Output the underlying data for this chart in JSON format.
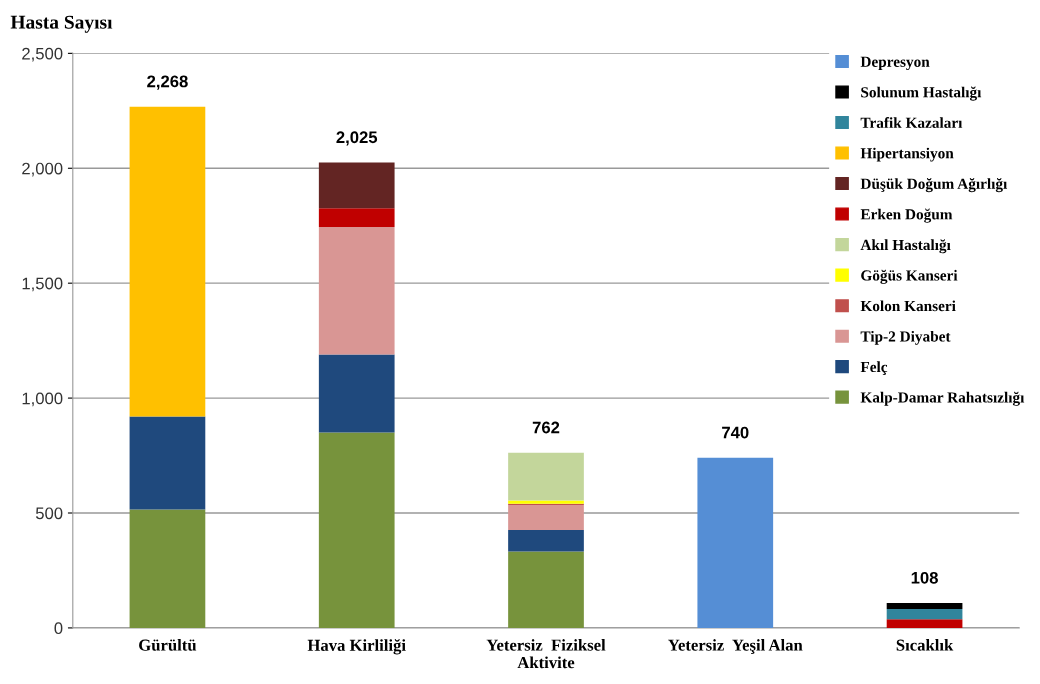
{
  "chart_data": {
    "type": "bar",
    "title": "Hasta Sayısı",
    "stacked": true,
    "categories": [
      "Gürültü",
      "Hava Kirliliği",
      "Yetersiz  Fiziksel\nAktivite",
      "Yetersiz  Yeşil Alan",
      "Sıcaklık"
    ],
    "series": [
      {
        "name": "Kalp-Damar Rahatsızlığı",
        "color": "#77933c",
        "values": [
          515,
          850,
          332,
          null,
          null
        ]
      },
      {
        "name": "Felç",
        "color": "#1f497d",
        "values": [
          405,
          340,
          94,
          null,
          null
        ]
      },
      {
        "name": "Tip-2 Diyabet",
        "color": "#d99694",
        "values": [
          null,
          554,
          109,
          null,
          null
        ]
      },
      {
        "name": "Kolon Kanseri",
        "color": "#c0504d",
        "values": [
          null,
          null,
          5,
          null,
          null
        ]
      },
      {
        "name": "Göğüs Kanseri",
        "color": "#ffff00",
        "values": [
          null,
          null,
          14,
          null,
          null
        ]
      },
      {
        "name": "Akıl Hastalığı",
        "color": "#c3d69b",
        "values": [
          null,
          null,
          208,
          null,
          null
        ]
      },
      {
        "name": "Erken Doğum",
        "color": "#c00000",
        "values": [
          null,
          82,
          null,
          null,
          38
        ]
      },
      {
        "name": "Düşük Doğum Ağırlığı",
        "color": "#632523",
        "values": [
          null,
          199,
          null,
          null,
          null
        ]
      },
      {
        "name": "Hipertansiyon",
        "color": "#ffc000",
        "values": [
          1348,
          null,
          null,
          null,
          null
        ]
      },
      {
        "name": "Trafik Kazaları",
        "color": "#31859c",
        "values": [
          null,
          null,
          null,
          null,
          44
        ]
      },
      {
        "name": "Solunum Hastalığı",
        "color": "#000000",
        "values": [
          null,
          null,
          null,
          null,
          26
        ]
      },
      {
        "name": "Depresyon",
        "color": "#558ed5",
        "values": [
          null,
          null,
          null,
          740,
          null
        ]
      }
    ],
    "totals": [
      "2,268",
      "2,025",
      "762",
      "740",
      "108"
    ],
    "ylim": [
      0,
      2500
    ],
    "yticks": [
      {
        "value": 0,
        "label": "0"
      },
      {
        "value": 500,
        "label": "500"
      },
      {
        "value": 1000,
        "label": "1,000"
      },
      {
        "value": 1500,
        "label": "1,500"
      },
      {
        "value": 2000,
        "label": "2,000"
      },
      {
        "value": 2500,
        "label": "2,500"
      }
    ],
    "grid": "y",
    "legend": "top right"
  }
}
